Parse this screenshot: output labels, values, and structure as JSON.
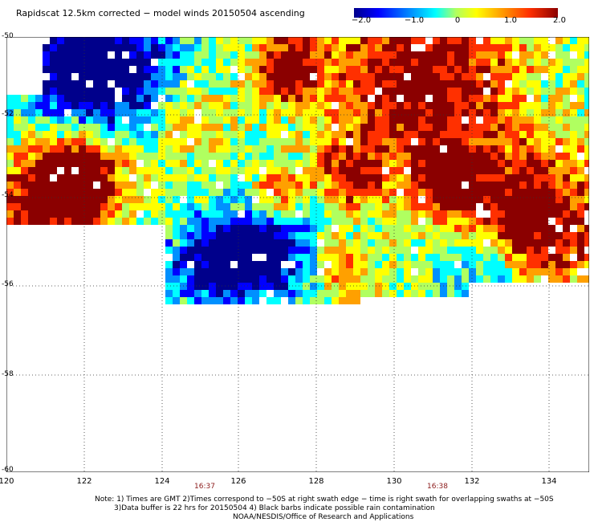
{
  "title": "Rapidscat 12.5km corrected − model winds 20150504 ascending",
  "colorbar": {
    "ticks": [
      "−2.0",
      "−1.0",
      "0",
      "1.0",
      "2.0"
    ],
    "tick_values": [
      -2.0,
      -1.0,
      0,
      1.0,
      2.0
    ],
    "colors": [
      "#00008b",
      "#0000ff",
      "#0090ff",
      "#00ffff",
      "#b0ff60",
      "#ffff00",
      "#ffa000",
      "#ff3000",
      "#8b0000"
    ]
  },
  "map": {
    "lon_range": [
      120,
      135
    ],
    "lat_range": [
      -60,
      -50
    ],
    "x_ticks": [
      "120",
      "122",
      "124",
      "126",
      "128",
      "130",
      "132",
      "134"
    ],
    "y_ticks": [
      "-50",
      "-52",
      "-54",
      "-56",
      "-58",
      "-60"
    ],
    "grid": "dotted"
  },
  "times": [
    "16:37",
    "16:38"
  ],
  "notes": [
    "Note: 1) Times are GMT 2)Times correspond to −50S at right swath edge − time is right swath for overlapping swaths at −50S",
    "3)Data buffer is 22 hrs for 20150504 4) Black barbs indicate possible rain contamination",
    "NOAA/NESDIS/Office of Research and Applications"
  ]
}
